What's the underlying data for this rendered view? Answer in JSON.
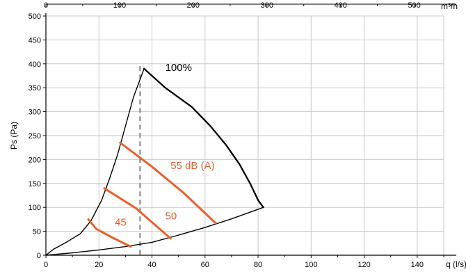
{
  "chart_data": {
    "type": "line",
    "xlabel": "q (l/s)",
    "ylabel": "Ps (Pa)",
    "x2label": "m³/h",
    "xlim": [
      0,
      150
    ],
    "ylim": [
      0,
      500
    ],
    "x_ticks": [
      0,
      20,
      40,
      60,
      80,
      100,
      120,
      140
    ],
    "x_tick_labels": [
      "0",
      "20",
      "40",
      "60",
      "80",
      "100",
      "120",
      "140"
    ],
    "y_ticks": [
      0,
      50,
      100,
      150,
      200,
      250,
      300,
      350,
      400,
      450,
      500
    ],
    "y_tick_labels": [
      "0",
      "50",
      "100",
      "150",
      "200",
      "250",
      "300",
      "350",
      "400",
      "450",
      "500"
    ],
    "x2_ticks_m3h": [
      0,
      100,
      200,
      300,
      400,
      500
    ],
    "x2_tick_labels": [
      "0",
      "100",
      "200",
      "300",
      "400",
      "500"
    ],
    "grid": true,
    "colors": {
      "curve": "#000000",
      "sound": "#e8602c",
      "grid": "#c8c8c8",
      "dashed": "#808080"
    },
    "series": [
      {
        "name": "100%",
        "kind": "fan-curve",
        "x": [
          37,
          45,
          55,
          62,
          68,
          73,
          77,
          80,
          82
        ],
        "y": [
          390,
          350,
          310,
          270,
          230,
          190,
          150,
          115,
          100
        ]
      },
      {
        "kind": "lower-boundary",
        "x": [
          0,
          10,
          20,
          30,
          40,
          50,
          60,
          70,
          82
        ],
        "y": [
          0,
          5,
          11,
          18,
          27,
          42,
          58,
          76,
          100
        ]
      },
      {
        "kind": "left-boundary",
        "x": [
          0,
          3,
          8,
          13,
          17,
          21,
          24,
          27,
          30,
          33,
          37
        ],
        "y": [
          0,
          13,
          28,
          45,
          72,
          115,
          160,
          210,
          270,
          330,
          390
        ]
      },
      {
        "name": "55 dB (A)",
        "kind": "sound-line",
        "x": [
          28,
          40,
          52,
          64
        ],
        "y": [
          235,
          185,
          130,
          67
        ]
      },
      {
        "name": "50",
        "kind": "sound-line",
        "x": [
          22,
          34,
          47
        ],
        "y": [
          140,
          98,
          35
        ]
      },
      {
        "name": "45",
        "kind": "sound-line",
        "x": [
          16,
          19,
          25,
          32
        ],
        "y": [
          75,
          55,
          37,
          18
        ]
      }
    ],
    "dashed_vertical_x": 35.5,
    "annotations": [
      {
        "text": "100%",
        "x": 45,
        "y": 385,
        "color": "#000000"
      },
      {
        "text": "55 dB (A)",
        "x": 47,
        "y": 180,
        "color": "#e8602c"
      },
      {
        "text": "50",
        "x": 45,
        "y": 75,
        "color": "#e8602c"
      },
      {
        "text": "45",
        "x": 26,
        "y": 62,
        "color": "#e8602c"
      }
    ]
  }
}
